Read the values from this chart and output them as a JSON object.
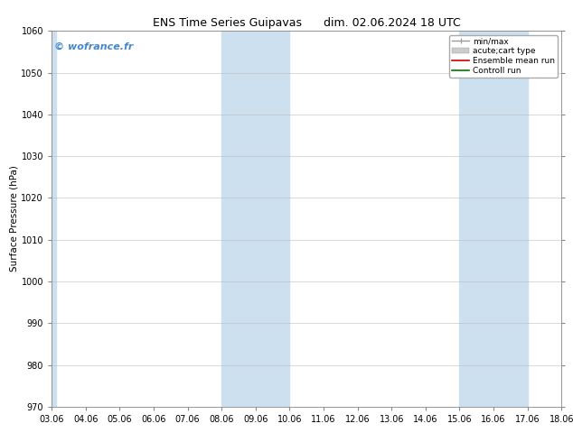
{
  "title_left": "ENS Time Series Guipavas",
  "title_right": "dim. 02.06.2024 18 UTC",
  "ylabel": "Surface Pressure (hPa)",
  "ylim": [
    970,
    1060
  ],
  "yticks": [
    970,
    980,
    990,
    1000,
    1010,
    1020,
    1030,
    1040,
    1050,
    1060
  ],
  "xlim": [
    0,
    15
  ],
  "xtick_labels": [
    "03.06",
    "04.06",
    "05.06",
    "06.06",
    "07.06",
    "08.06",
    "09.06",
    "10.06",
    "11.06",
    "12.06",
    "13.06",
    "14.06",
    "15.06",
    "16.06",
    "17.06",
    "18.06"
  ],
  "xtick_positions": [
    0,
    1,
    2,
    3,
    4,
    5,
    6,
    7,
    8,
    9,
    10,
    11,
    12,
    13,
    14,
    15
  ],
  "shaded_bands": [
    {
      "xmin": 0,
      "xmax": 0.12,
      "color": "#cce0f0"
    },
    {
      "xmin": 5,
      "xmax": 7,
      "color": "#cce0f0"
    },
    {
      "xmin": 12,
      "xmax": 14,
      "color": "#cce0f0"
    }
  ],
  "watermark": "© wofrance.fr",
  "watermark_color": "#4488cc",
  "legend_items": [
    {
      "label": "min/max",
      "color": "#999999",
      "lw": 1.0
    },
    {
      "label": "acute;cart type",
      "color": "#cccccc",
      "lw": 5
    },
    {
      "label": "Ensemble mean run",
      "color": "#cc0000",
      "lw": 1.2
    },
    {
      "label": "Controll run",
      "color": "#007700",
      "lw": 1.2
    }
  ],
  "bg_color": "#ffffff",
  "grid_color": "#bbbbbb",
  "title_fontsize": 9,
  "ylabel_fontsize": 7.5,
  "tick_fontsize": 7,
  "legend_fontsize": 6.5,
  "watermark_fontsize": 8
}
